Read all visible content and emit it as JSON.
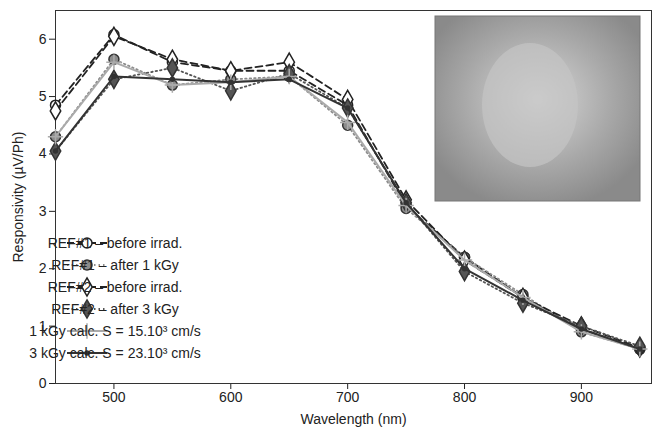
{
  "chart_data": {
    "type": "line",
    "x_label": "Wavelength (nm)",
    "y_label": "Responsivity (µV/Ph)",
    "x": [
      450,
      500,
      550,
      600,
      650,
      700,
      750,
      800,
      850,
      900,
      950
    ],
    "xlim": [
      450,
      960
    ],
    "xticks": [
      500,
      600,
      700,
      800,
      900
    ],
    "ylim": [
      0,
      6.5
    ],
    "yticks": [
      0,
      1,
      2,
      3,
      4,
      5,
      6
    ],
    "grid": false,
    "legend": "lower left",
    "series": [
      {
        "name": "REF#1 – before irrad.",
        "color": "#222222",
        "marker": "circle_open",
        "line_style": "dashed",
        "values": [
          4.85,
          6.08,
          5.6,
          5.45,
          5.45,
          4.85,
          3.1,
          2.2,
          1.5,
          0.95,
          0.6
        ]
      },
      {
        "name": "REF#1 – after 1 kGy",
        "color": "#8c8c8c",
        "marker": "circle",
        "line_style": "dotted",
        "values": [
          4.3,
          5.65,
          5.2,
          5.3,
          5.35,
          4.5,
          3.05,
          2.2,
          1.55,
          0.9,
          0.6
        ]
      },
      {
        "name": "REF#2 – before irrad.",
        "color": "#222222",
        "marker": "diamond_open",
        "line_style": "dashed",
        "values": [
          4.75,
          6.05,
          5.65,
          5.45,
          5.6,
          4.95,
          3.2,
          2.15,
          1.5,
          1.0,
          0.62
        ]
      },
      {
        "name": "REF#2 – after 3 kGy",
        "color": "#555555",
        "marker": "diamond",
        "line_style": "dotted",
        "values": [
          4.05,
          5.3,
          5.5,
          5.1,
          5.4,
          4.8,
          3.15,
          1.95,
          1.4,
          1.0,
          0.65
        ]
      },
      {
        "name": "1 kGy calc. S = 15.10³ cm/s",
        "color": "#aaaaaa",
        "marker": "plus",
        "line_style": "solid",
        "values": [
          4.3,
          5.6,
          5.2,
          5.25,
          5.35,
          4.55,
          3.1,
          2.15,
          1.5,
          0.9,
          0.6
        ]
      },
      {
        "name": "3 kGy calc. S = 23.10³ cm/s",
        "color": "#333333",
        "marker": "dot",
        "line_style": "solid",
        "values": [
          4.05,
          5.35,
          5.3,
          5.25,
          5.3,
          4.8,
          3.15,
          2.0,
          1.45,
          0.95,
          0.6
        ]
      }
    ]
  }
}
